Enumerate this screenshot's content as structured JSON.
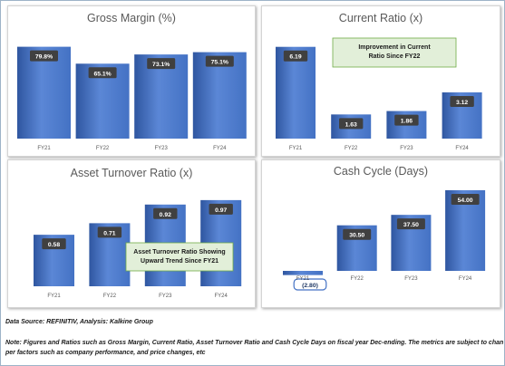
{
  "colors": {
    "bar": "#4472c4",
    "bar_light": "#5b87d6",
    "bar_dark": "#2f56a0",
    "label_bg": "#404040",
    "label_text": "#ffffff",
    "callout_fill": "#e2efd9",
    "callout_border": "#70ad47",
    "title": "#595959",
    "tick": "#595959"
  },
  "chart_data": [
    {
      "type": "bar",
      "title": "Gross Margin (%)",
      "categories": [
        "FY21",
        "FY22",
        "FY23",
        "FY24"
      ],
      "values": [
        79.8,
        65.1,
        73.1,
        75.1
      ],
      "value_labels": [
        "79.8%",
        "65.1%",
        "73.1%",
        "75.1%"
      ],
      "ylim": [
        0,
        85
      ],
      "grid": false,
      "annotation": ""
    },
    {
      "type": "bar",
      "title": "Current Ratio (x)",
      "categories": [
        "FY21",
        "FY22",
        "FY23",
        "FY24"
      ],
      "values": [
        6.19,
        1.63,
        1.86,
        3.12
      ],
      "value_labels": [
        "6.19",
        "1.63",
        "1.86",
        "3.12"
      ],
      "ylim": [
        0,
        6.6
      ],
      "grid": false,
      "annotation": "Improvement in Current Ratio Since FY22"
    },
    {
      "type": "bar",
      "title": "Asset Turnover Ratio (x)",
      "categories": [
        "FY21",
        "FY22",
        "FY23",
        "FY24"
      ],
      "values": [
        0.58,
        0.71,
        0.92,
        0.97
      ],
      "value_labels": [
        "0.58",
        "0.71",
        "0.92",
        "0.97"
      ],
      "ylim": [
        0,
        1.03
      ],
      "grid": false,
      "annotation": "Asset Turnover Ratio Showing Upward Trend Since FY21"
    },
    {
      "type": "bar",
      "title": "Cash Cycle (Days)",
      "categories": [
        "FY21",
        "FY22",
        "FY23",
        "FY24"
      ],
      "values": [
        -2.8,
        30.5,
        37.5,
        54.0
      ],
      "value_labels": [
        "(2.80)",
        "30.50",
        "37.50",
        "54.00"
      ],
      "ylim": [
        -4,
        57
      ],
      "grid": false,
      "annotation": ""
    }
  ],
  "footer": {
    "source": "Data Source: REFINITIV, Analysis: Kalkine Group",
    "note_line1": "Note: Figures and Ratios such as Gross Margin, Current Ratio, Asset Turnover Ratio and Cash Cycle Days on fiscal year Dec-ending. The metrics are subject to change as",
    "note_line2": "per factors such as company performance, and price changes, etc"
  }
}
